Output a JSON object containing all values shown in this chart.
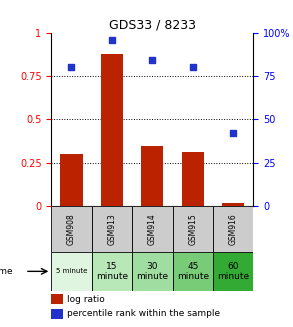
{
  "title": "GDS33 / 8233",
  "samples": [
    "GSM908",
    "GSM913",
    "GSM914",
    "GSM915",
    "GSM916"
  ],
  "log_ratio": [
    0.3,
    0.88,
    0.35,
    0.31,
    0.02
  ],
  "percentile_rank": [
    0.8,
    0.96,
    0.84,
    0.8,
    0.42
  ],
  "bar_color": "#bb2200",
  "dot_color": "#2233cc",
  "ylim_left": [
    0,
    1.0
  ],
  "ylim_right": [
    0,
    100
  ],
  "yticks_left": [
    0,
    0.25,
    0.5,
    0.75,
    1.0
  ],
  "yticks_right": [
    0,
    25,
    50,
    75,
    100
  ],
  "ytick_labels_left": [
    "0",
    "0.25",
    "0.5",
    "0.75",
    "1"
  ],
  "ytick_labels_right": [
    "0",
    "25",
    "50",
    "75",
    "100%"
  ],
  "hlines": [
    0.25,
    0.5,
    0.75
  ],
  "bar_width": 0.55,
  "sample_bg_color": "#cccccc",
  "time_labels": [
    "5 minute",
    "15\nminute",
    "30\nminute",
    "45\nminute",
    "60\nminute"
  ],
  "time_colors": [
    "#dff5df",
    "#b8e8b8",
    "#a0dda0",
    "#78cc78",
    "#33aa33"
  ],
  "time_fontsizes": [
    5,
    6.5,
    6.5,
    6.5,
    6.5
  ]
}
